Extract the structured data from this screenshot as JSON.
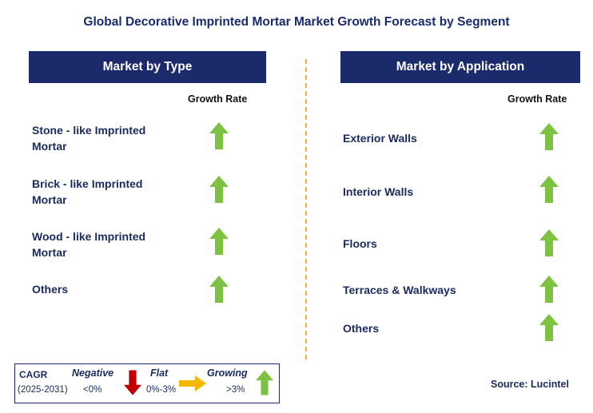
{
  "title": "Global Decorative Imprinted Mortar Market Growth Forecast by Segment",
  "left_panel": {
    "header": "Market by Type",
    "growth_label": "Growth Rate",
    "items": [
      {
        "line1": "Stone - like Imprinted",
        "line2": "Mortar",
        "trend": "growing"
      },
      {
        "line1": "Brick - like Imprinted",
        "line2": "Mortar",
        "trend": "growing"
      },
      {
        "line1": "Wood - like Imprinted",
        "line2": "Mortar",
        "trend": "growing"
      },
      {
        "line1": "Others",
        "line2": "",
        "trend": "growing"
      }
    ]
  },
  "right_panel": {
    "header": "Market by Application",
    "growth_label": "Growth Rate",
    "items": [
      {
        "label": "Exterior Walls",
        "trend": "growing"
      },
      {
        "label": "Interior Walls",
        "trend": "growing"
      },
      {
        "label": "Floors",
        "trend": "growing"
      },
      {
        "label": "Terraces & Walkways",
        "trend": "growing"
      },
      {
        "label": "Others",
        "trend": "growing"
      }
    ]
  },
  "legend": {
    "cagr": "CAGR",
    "period": "(2025-2031)",
    "negative": {
      "label": "Negative",
      "range": "<0%"
    },
    "flat": {
      "label": "Flat",
      "range": "0%-3%"
    },
    "growing": {
      "label": "Growing",
      "range": ">3%"
    }
  },
  "source": "Source: Lucintel",
  "colors": {
    "header_bg": "#1b2a6b",
    "growing": "#7dc242",
    "negative": "#c00000",
    "flat": "#f5b800",
    "divider": "#f5b02a"
  }
}
